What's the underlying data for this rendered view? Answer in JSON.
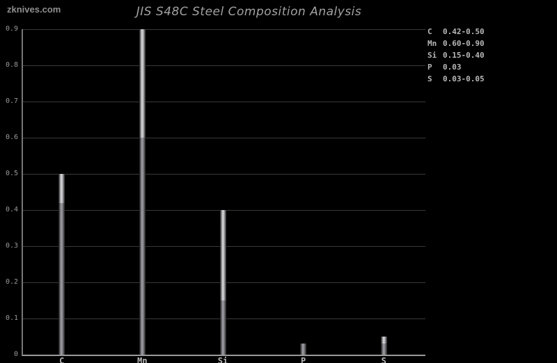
{
  "watermark": "zknives.com",
  "chart_data": {
    "type": "bar",
    "title": "JIS S48C Steel Composition Analysis",
    "subtitle": "",
    "xlabel": "",
    "ylabel": "",
    "categories": [
      "C",
      "Mn",
      "Si",
      "P",
      "S"
    ],
    "series": [
      {
        "name": "range_min",
        "values": [
          0.42,
          0.6,
          0.15,
          0.03,
          0.03
        ]
      },
      {
        "name": "range_max",
        "values": [
          0.5,
          0.9,
          0.4,
          0.03,
          0.05
        ]
      }
    ],
    "bar_style": "range-highlight: segment from range_min to range_max drawn lighter, 0 to range_min darker",
    "ylim": [
      0,
      0.9
    ],
    "yticks": [
      {
        "value": 0,
        "label": "0"
      },
      {
        "value": 0.1,
        "label": "0.1"
      },
      {
        "value": 0.2,
        "label": "0.2"
      },
      {
        "value": 0.3,
        "label": "0.3"
      },
      {
        "value": 0.4,
        "label": "0.4"
      },
      {
        "value": 0.5,
        "label": "0.5"
      },
      {
        "value": 0.6,
        "label": "0.6"
      },
      {
        "value": 0.7,
        "label": "0.7"
      },
      {
        "value": 0.8,
        "label": "0.8"
      },
      {
        "value": 0.9,
        "label": "0.9"
      }
    ],
    "grid": true,
    "legend_position": "outside-top-right"
  },
  "legend": {
    "items": [
      {
        "symbol": "C",
        "value": "0.42-0.50"
      },
      {
        "symbol": "Mn",
        "value": "0.60-0.90"
      },
      {
        "symbol": "Si",
        "value": "0.15-0.40"
      },
      {
        "symbol": "P",
        "value": "0.03"
      },
      {
        "symbol": "S",
        "value": "0.03-0.05"
      }
    ]
  },
  "colors": {
    "background": "#000000",
    "title_text": "#a2a2a2",
    "watermark_text": "#909090",
    "axis_line": "#9a9a9a",
    "axis_left": "#787878",
    "gridline": "#3a3a3a",
    "tick_label": "#9a9a9a",
    "category_label": "#b8b8b8",
    "legend_text": "#b8b8b8",
    "bar_range_center": "#d4d4d8",
    "bar_base_center": "#9c9ca2"
  }
}
